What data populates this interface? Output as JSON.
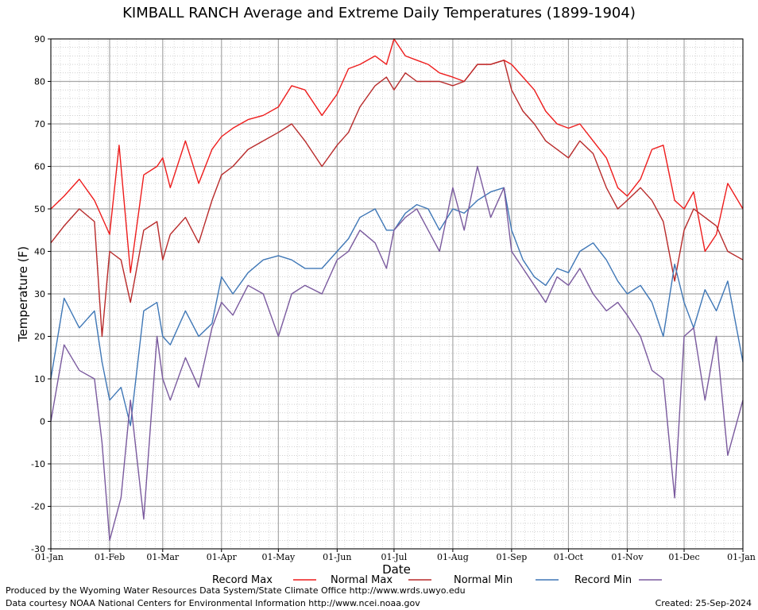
{
  "chart_data": {
    "type": "line",
    "title": "KIMBALL RANCH Average and Extreme Daily Temperatures (1899-1904)",
    "xlabel": "Date",
    "ylabel": "Temperature (F)",
    "ylim": [
      -30,
      90
    ],
    "yticks": [
      -30,
      -20,
      -10,
      0,
      10,
      20,
      30,
      40,
      50,
      60,
      70,
      80,
      90
    ],
    "x_tick_labels": [
      "01-Jan",
      "01-Feb",
      "01-Mar",
      "01-Apr",
      "01-May",
      "01-Jun",
      "01-Jul",
      "01-Aug",
      "01-Sep",
      "01-Oct",
      "01-Nov",
      "01-Dec",
      "01-Jan"
    ],
    "x_tick_days": [
      1,
      32,
      60,
      91,
      121,
      152,
      182,
      213,
      244,
      274,
      305,
      335,
      366
    ],
    "x_range_days": [
      1,
      366
    ],
    "grid": true,
    "legend_position": "bottom",
    "series": [
      {
        "name": "Record Max",
        "color": "#ee1c1c",
        "x": [
          1,
          8,
          16,
          24,
          32,
          37,
          43,
          50,
          57,
          60,
          64,
          72,
          79,
          86,
          91,
          97,
          105,
          113,
          121,
          128,
          135,
          144,
          152,
          158,
          164,
          172,
          178,
          182,
          188,
          194,
          200,
          206,
          213,
          219,
          226,
          233,
          240,
          244,
          250,
          256,
          262,
          268,
          274,
          280,
          287,
          294,
          300,
          305,
          312,
          318,
          324,
          330,
          335,
          340,
          346,
          352,
          358,
          366
        ],
        "y": [
          50,
          53,
          57,
          52,
          44,
          65,
          35,
          58,
          60,
          62,
          55,
          66,
          56,
          64,
          67,
          69,
          71,
          72,
          74,
          79,
          78,
          72,
          77,
          83,
          84,
          86,
          84,
          90,
          86,
          85,
          84,
          82,
          81,
          80,
          84,
          84,
          85,
          84,
          81,
          78,
          73,
          70,
          69,
          70,
          66,
          62,
          55,
          53,
          57,
          64,
          65,
          52,
          50,
          54,
          40,
          44,
          56,
          50
        ]
      },
      {
        "name": "Normal Max",
        "color": "#b82a2a",
        "x": [
          1,
          8,
          16,
          24,
          28,
          32,
          38,
          43,
          50,
          57,
          60,
          64,
          72,
          79,
          86,
          91,
          97,
          105,
          113,
          121,
          128,
          135,
          144,
          152,
          158,
          164,
          172,
          178,
          182,
          188,
          194,
          200,
          206,
          213,
          219,
          226,
          233,
          240,
          244,
          250,
          256,
          262,
          268,
          274,
          280,
          287,
          294,
          300,
          305,
          312,
          318,
          324,
          330,
          335,
          340,
          346,
          352,
          358,
          366
        ],
        "y": [
          42,
          46,
          50,
          47,
          20,
          40,
          38,
          28,
          45,
          47,
          38,
          44,
          48,
          42,
          52,
          58,
          60,
          64,
          66,
          68,
          70,
          66,
          60,
          65,
          68,
          74,
          79,
          81,
          78,
          82,
          80,
          80,
          80,
          79,
          80,
          84,
          84,
          85,
          78,
          73,
          70,
          66,
          64,
          62,
          66,
          63,
          55,
          50,
          52,
          55,
          52,
          47,
          33,
          45,
          50,
          48,
          46,
          40,
          38
        ]
      },
      {
        "name": "Normal Min",
        "color": "#3f77b6",
        "x": [
          1,
          8,
          16,
          24,
          28,
          32,
          38,
          43,
          50,
          57,
          60,
          64,
          72,
          79,
          86,
          91,
          97,
          105,
          113,
          121,
          128,
          135,
          144,
          152,
          158,
          164,
          172,
          178,
          182,
          188,
          194,
          200,
          206,
          213,
          219,
          226,
          233,
          240,
          244,
          250,
          256,
          262,
          268,
          274,
          280,
          287,
          294,
          300,
          305,
          312,
          318,
          324,
          330,
          335,
          340,
          346,
          352,
          358,
          366
        ],
        "y": [
          10,
          29,
          22,
          26,
          14,
          5,
          8,
          -1,
          26,
          28,
          20,
          18,
          26,
          20,
          23,
          34,
          30,
          35,
          38,
          39,
          38,
          36,
          36,
          40,
          43,
          48,
          50,
          45,
          45,
          49,
          51,
          50,
          45,
          50,
          49,
          52,
          54,
          55,
          45,
          38,
          34,
          32,
          36,
          35,
          40,
          42,
          38,
          33,
          30,
          32,
          28,
          20,
          37,
          28,
          22,
          31,
          26,
          33,
          14
        ]
      },
      {
        "name": "Record Min",
        "color": "#7a5a9e",
        "x": [
          1,
          8,
          16,
          24,
          28,
          32,
          38,
          43,
          50,
          57,
          60,
          64,
          72,
          79,
          86,
          91,
          97,
          105,
          113,
          121,
          128,
          135,
          144,
          152,
          158,
          164,
          172,
          178,
          182,
          188,
          194,
          200,
          206,
          213,
          219,
          226,
          233,
          240,
          244,
          250,
          256,
          262,
          268,
          274,
          280,
          287,
          294,
          300,
          305,
          312,
          318,
          324,
          330,
          335,
          340,
          346,
          352,
          358,
          366
        ],
        "y": [
          0,
          18,
          12,
          10,
          -5,
          -28,
          -18,
          5,
          -23,
          20,
          10,
          5,
          15,
          8,
          22,
          28,
          25,
          32,
          30,
          20,
          30,
          32,
          30,
          38,
          40,
          45,
          42,
          36,
          45,
          48,
          50,
          45,
          40,
          55,
          45,
          60,
          48,
          55,
          40,
          36,
          32,
          28,
          34,
          32,
          36,
          30,
          26,
          28,
          25,
          20,
          12,
          10,
          -18,
          20,
          22,
          5,
          20,
          -8,
          5
        ]
      }
    ]
  },
  "legend": {
    "items": [
      {
        "label": "Record Max",
        "color": "#ee1c1c"
      },
      {
        "label": "Normal Max",
        "color": "#b82a2a"
      },
      {
        "label": "Normal Min",
        "color": "#3f77b6"
      },
      {
        "label": "Record Min",
        "color": "#7a5a9e"
      }
    ]
  },
  "footer": {
    "produced_by": "Produced by the Wyoming Water Resources Data System/State Climate Office http://www.wrds.uwyo.edu",
    "data_courtesy": "Data courtesy NOAA National Centers for Environmental Information http://www.ncei.noaa.gov",
    "created": "Created:  25-Sep-2024"
  }
}
